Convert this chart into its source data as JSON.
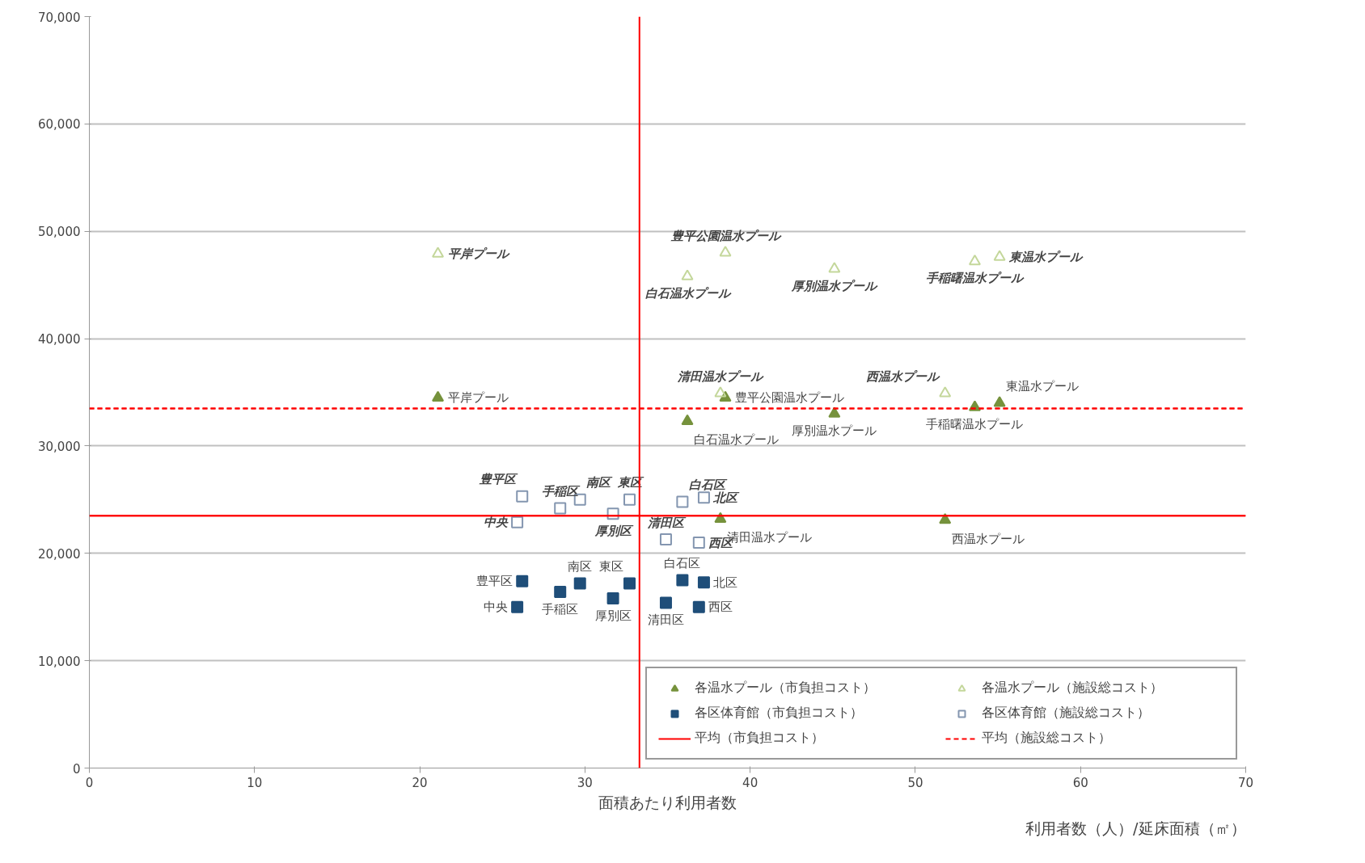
{
  "chart_data": {
    "type": "scatter",
    "xlabel": "面積あたり利用者数",
    "annotations": [
      "利用者数（人）/延床面積（㎡）"
    ],
    "xlim": [
      0,
      70
    ],
    "xticks": [
      0,
      10,
      20,
      30,
      40,
      50,
      60,
      70
    ],
    "ylim": [
      0,
      70000
    ],
    "yticks": [
      {
        "value": 0,
        "label": "0"
      },
      {
        "value": 10000,
        "label": "10,000"
      },
      {
        "value": 20000,
        "label": "20,000"
      },
      {
        "value": 30000,
        "label": "30,000"
      },
      {
        "value": 40000,
        "label": "40,000"
      },
      {
        "value": 50000,
        "label": "50,000"
      },
      {
        "value": 60000,
        "label": "60,000"
      },
      {
        "value": 70000,
        "label": "70,000"
      }
    ],
    "grid": "y",
    "legend": "bottom right",
    "series": [
      {
        "name": "各温水プール（市負担コスト）",
        "color": "#76923c",
        "marker": "triangle",
        "x": [
          21.1,
          38.2,
          38.5,
          36.2,
          45.1,
          51.8,
          53.6,
          55.1
        ],
        "values": [
          34500,
          23200,
          34500,
          32300,
          33000,
          23100,
          33600,
          34000
        ],
        "value_labels": [
          "平岸プール",
          "清田温水プール",
          "豊平公園温水プール",
          "白石温水プール",
          "厚別温水プール",
          "西温水プール",
          "手稲曙温水プール",
          "東温水プール"
        ]
      },
      {
        "name": "各温水プール（施設総コスト）",
        "color": "#c4d79b",
        "marker": "triangle",
        "x": [
          21.1,
          36.2,
          38.5,
          45.1,
          53.6,
          55.1,
          38.2,
          51.8
        ],
        "values": [
          47900,
          45800,
          48000,
          46500,
          47200,
          47600,
          34900,
          34900
        ],
        "value_labels": [
          "平岸プール",
          "白石温水プール",
          "豊平公園温水プール",
          "厚別温水プール",
          "手稲曙温水プール",
          "東温水プール",
          "清田温水プール",
          "西温水プール"
        ]
      },
      {
        "name": "各区体育館（市負担コスト）",
        "color": "#1f4e79",
        "marker": "square",
        "x": [
          26.2,
          25.9,
          28.5,
          29.7,
          31.7,
          32.7,
          34.9,
          35.9,
          37.2,
          36.9
        ],
        "values": [
          17400,
          15000,
          16400,
          17200,
          15800,
          17200,
          15400,
          17500,
          17300,
          15000
        ],
        "value_labels": [
          "豊平区",
          "中央",
          "手稲区",
          "南区",
          "厚別区",
          "東区",
          "清田区",
          "白石区",
          "北区",
          "西区"
        ]
      },
      {
        "name": "各区体育館（施設総コスト）",
        "color": "#8496b0",
        "marker": "square",
        "x": [
          26.2,
          25.9,
          28.5,
          29.7,
          31.7,
          32.7,
          35.9,
          37.2,
          34.9,
          36.9
        ],
        "values": [
          25300,
          22900,
          24200,
          25000,
          23700,
          25000,
          24800,
          25200,
          21300,
          21000
        ],
        "value_labels": [
          "豊平区",
          "中央",
          "手稲区",
          "南区",
          "厚別区",
          "東区",
          "白石区",
          "北区",
          "清田区",
          "西区"
        ]
      }
    ],
    "ref_lines": [
      {
        "axis": "y",
        "value": 23500,
        "label": "平均（市負担コスト）",
        "color": "#ff0000",
        "line_style": "solid"
      },
      {
        "axis": "y",
        "value": 33500,
        "label": "平均（施設総コスト）",
        "color": "#ff0000",
        "line_style": "dashed"
      },
      {
        "axis": "x",
        "value": 33.3,
        "color": "#ff0000",
        "line_style": "solid"
      }
    ]
  }
}
